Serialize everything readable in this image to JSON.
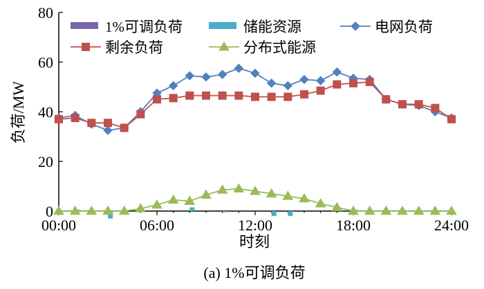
{
  "chart_data": {
    "type": "line",
    "caption": "(a) 1%可调负荷",
    "xlabel": "时刻",
    "ylabel": "负荷/MW",
    "xlim": [
      0,
      24
    ],
    "ylim": [
      0,
      80
    ],
    "x_ticks": [
      0,
      6,
      12,
      18,
      24
    ],
    "x_tick_labels": [
      "00:00",
      "06:00",
      "12:00",
      "18:00",
      "24:00"
    ],
    "y_ticks": [
      0,
      20,
      40,
      60,
      80
    ],
    "y_tick_labels": [
      "0",
      "20",
      "40",
      "60",
      "80"
    ],
    "grid": false,
    "legend_position": "top",
    "x": [
      0,
      1,
      2,
      3,
      4,
      5,
      6,
      7,
      8,
      9,
      10,
      11,
      12,
      13,
      14,
      15,
      16,
      17,
      18,
      19,
      20,
      21,
      22,
      23,
      24
    ],
    "series": [
      {
        "name": "1%可调负荷",
        "kind": "bar",
        "color": "#7b68a8",
        "values": [
          0,
          0,
          0,
          0,
          0,
          0,
          0,
          0,
          0,
          0,
          0,
          0,
          0,
          0,
          0,
          0,
          0,
          0,
          0,
          0,
          0,
          0,
          0,
          0,
          0
        ]
      },
      {
        "name": "储能资源",
        "kind": "bar",
        "color": "#4bacc6",
        "values": [
          0,
          0.5,
          0,
          -3,
          0,
          0,
          0,
          0,
          1.5,
          0,
          -0.5,
          0,
          0,
          -2,
          -2,
          0,
          0,
          0,
          0.5,
          0,
          0,
          0,
          0,
          0,
          0
        ]
      },
      {
        "name": "电网负荷",
        "kind": "line",
        "marker": "diamond",
        "color": "#4f81bd",
        "values": [
          37.5,
          38.5,
          35,
          32.5,
          33.5,
          40,
          47.5,
          50.5,
          54.5,
          54,
          55,
          57.5,
          55.5,
          51.5,
          50.5,
          53,
          52.5,
          56,
          53.5,
          53,
          45,
          43,
          42.5,
          40,
          37.5
        ]
      },
      {
        "name": "剩余负荷",
        "kind": "line",
        "marker": "square",
        "color": "#c0504d",
        "values": [
          37,
          37.5,
          35.5,
          35.5,
          33.5,
          39,
          45,
          45.5,
          46.5,
          46.5,
          46.5,
          46.5,
          46,
          46,
          46,
          47,
          48.5,
          51,
          51.5,
          52,
          45,
          43,
          43,
          41.5,
          37
        ]
      },
      {
        "name": "分布式能源",
        "kind": "line",
        "marker": "triangle",
        "color": "#9bbb59",
        "values": [
          0,
          0,
          0,
          0,
          0,
          1,
          2.5,
          4.5,
          4,
          6.5,
          8.5,
          9,
          8,
          7,
          6,
          5,
          3,
          1.5,
          0,
          0,
          0,
          0,
          0,
          0,
          0
        ]
      }
    ]
  }
}
